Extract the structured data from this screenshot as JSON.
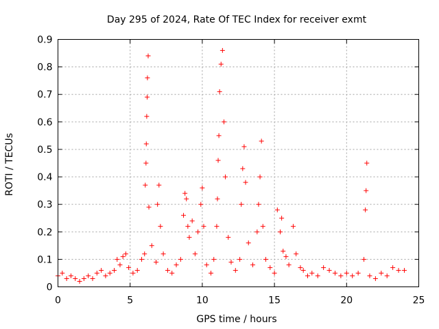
{
  "chart_data": {
    "type": "scatter",
    "title": "Day 295 of 2024, Rate Of TEC Index for receiver exmt",
    "xlabel": "GPS time / hours",
    "ylabel": "ROTI / TECUs",
    "xlim": [
      0,
      25
    ],
    "ylim": [
      0,
      0.9
    ],
    "xticks": [
      0,
      5,
      10,
      15,
      20,
      25
    ],
    "yticks": [
      0,
      0.1,
      0.2,
      0.3,
      0.4,
      0.5,
      0.6,
      0.7,
      0.8,
      0.9
    ],
    "xtick_labels": [
      "0",
      "5",
      "10",
      "15",
      "20",
      "25"
    ],
    "ytick_labels": [
      "0",
      "0.1",
      "0.2",
      "0.3",
      "0.4",
      "0.5",
      "0.6",
      "0.7",
      "0.8",
      "0.9"
    ],
    "grid": true,
    "marker": "+",
    "color": "#ff0000",
    "series": [
      {
        "x": [
          0.0,
          0.3,
          0.6,
          0.9,
          1.2,
          1.5,
          1.8,
          2.1,
          2.4,
          2.7,
          3.0,
          3.3,
          3.6,
          3.9,
          4.1,
          4.3,
          4.5,
          4.7,
          4.9,
          5.2,
          5.5,
          5.8,
          6.0,
          6.05,
          6.1,
          6.12,
          6.15,
          6.18,
          6.2,
          6.25,
          6.3,
          6.5,
          6.8,
          6.9,
          7.0,
          7.1,
          7.3,
          7.6,
          7.9,
          8.2,
          8.5,
          8.7,
          8.8,
          8.9,
          9.0,
          9.1,
          9.3,
          9.5,
          9.7,
          9.9,
          10.0,
          10.1,
          10.3,
          10.6,
          10.8,
          11.0,
          11.05,
          11.1,
          11.15,
          11.2,
          11.3,
          11.4,
          11.5,
          11.6,
          11.8,
          12.0,
          12.3,
          12.6,
          12.7,
          12.8,
          12.9,
          13.0,
          13.2,
          13.5,
          13.8,
          13.9,
          14.0,
          14.1,
          14.2,
          14.4,
          14.7,
          15.0,
          15.2,
          15.4,
          15.5,
          15.6,
          15.8,
          16.0,
          16.3,
          16.5,
          16.8,
          17.0,
          17.3,
          17.6,
          18.0,
          18.4,
          18.8,
          19.2,
          19.6,
          20.0,
          20.4,
          20.8,
          21.2,
          21.3,
          21.35,
          21.4,
          21.6,
          22.0,
          22.4,
          22.8,
          23.2,
          23.6,
          24.0
        ],
        "y": [
          0.04,
          0.05,
          0.03,
          0.04,
          0.03,
          0.02,
          0.03,
          0.04,
          0.03,
          0.05,
          0.06,
          0.04,
          0.05,
          0.06,
          0.1,
          0.08,
          0.11,
          0.12,
          0.07,
          0.05,
          0.06,
          0.1,
          0.12,
          0.37,
          0.45,
          0.52,
          0.62,
          0.69,
          0.76,
          0.84,
          0.29,
          0.15,
          0.09,
          0.3,
          0.37,
          0.22,
          0.12,
          0.06,
          0.05,
          0.08,
          0.1,
          0.26,
          0.34,
          0.32,
          0.22,
          0.18,
          0.24,
          0.12,
          0.2,
          0.3,
          0.36,
          0.22,
          0.08,
          0.05,
          0.1,
          0.22,
          0.32,
          0.46,
          0.55,
          0.71,
          0.81,
          0.86,
          0.6,
          0.4,
          0.18,
          0.09,
          0.06,
          0.1,
          0.3,
          0.43,
          0.51,
          0.38,
          0.16,
          0.08,
          0.2,
          0.3,
          0.4,
          0.53,
          0.22,
          0.1,
          0.07,
          0.05,
          0.28,
          0.2,
          0.25,
          0.13,
          0.11,
          0.08,
          0.22,
          0.12,
          0.07,
          0.06,
          0.04,
          0.05,
          0.04,
          0.07,
          0.06,
          0.05,
          0.04,
          0.05,
          0.04,
          0.05,
          0.1,
          0.28,
          0.35,
          0.45,
          0.04,
          0.03,
          0.05,
          0.04,
          0.07,
          0.06,
          0.06
        ]
      }
    ]
  }
}
